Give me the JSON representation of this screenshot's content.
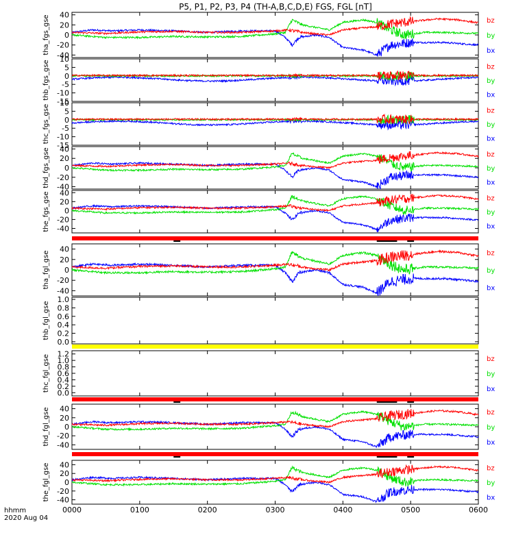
{
  "title": "P5, P1, P2, P3, P4 (TH-A,B,C,D,E) FGS, FGL [nT]",
  "time_axis": {
    "ticks": [
      "0000",
      "0100",
      "0200",
      "0300",
      "0400",
      "0500",
      "0600"
    ],
    "label_line1": "hhmm",
    "label_line2": "2020 Aug 04"
  },
  "colors": {
    "bx": "#0000ff",
    "by": "#00e000",
    "bz": "#ff0000",
    "bar_red": "#ff0000",
    "bar_yellow": "#ffff00",
    "bar_black": "#000000"
  },
  "chart_data": [
    {
      "type": "line",
      "name": "tha_fgs_gse",
      "ylabel": "tha_fgs_gse",
      "ylim": [
        -45,
        45
      ],
      "yticks": [
        40,
        20,
        0,
        -20,
        -40
      ],
      "legend": [
        "bz",
        "by",
        "bx"
      ],
      "has_data": true
    },
    {
      "type": "line",
      "name": "thb_fgs_gse",
      "ylabel": "thb_fgs_gse",
      "ylim": [
        -15,
        10
      ],
      "yticks": [
        10,
        5,
        0,
        -5,
        -10,
        -15
      ],
      "legend": [
        "bz",
        "by",
        "bx"
      ],
      "has_data": true
    },
    {
      "type": "line",
      "name": "thc_fgs_gse",
      "ylabel": "thc_fgs_gse",
      "ylim": [
        -15,
        10
      ],
      "yticks": [
        10,
        5,
        0,
        -5,
        -10,
        -15
      ],
      "legend": [
        "bz",
        "by",
        "bx"
      ],
      "has_data": true
    },
    {
      "type": "line",
      "name": "thd_fgs_gse",
      "ylabel": "thd_fgs_gse",
      "ylim": [
        -45,
        45
      ],
      "yticks": [
        40,
        20,
        0,
        -20,
        -40
      ],
      "legend": [
        "bz",
        "by",
        "bx"
      ],
      "has_data": true
    },
    {
      "type": "line",
      "name": "the_fgs_gse",
      "ylabel": "the_fgs_gse",
      "ylim": [
        -50,
        45
      ],
      "yticks": [
        40,
        20,
        0,
        -20,
        -40
      ],
      "legend": [
        "bz",
        "by",
        "bx"
      ],
      "has_data": true,
      "status_bar": "red"
    },
    {
      "type": "line",
      "name": "tha_fgl_gse",
      "ylabel": "tha_fgl_gse",
      "ylim": [
        -50,
        50
      ],
      "yticks": [
        40,
        20,
        0,
        -20,
        -40
      ],
      "legend": [
        "bz",
        "by",
        "bx"
      ],
      "has_data": true
    },
    {
      "type": "line",
      "name": "thb_fgl_gse",
      "ylabel": "thb_fgl_gse",
      "ylim": [
        -0.05,
        1.05
      ],
      "yticks": [
        "1.0",
        "0.8",
        "0.6",
        "0.4",
        "0.2",
        "0.0"
      ],
      "legend": [],
      "has_data": false,
      "status_bar": "yellow"
    },
    {
      "type": "line",
      "name": "thc_fgl_gse",
      "ylabel": "thc_fgl_gse",
      "ylim": [
        -0.1,
        1.3
      ],
      "yticks": [
        "1.2",
        "1.0",
        "0.8",
        "0.6",
        "0.4",
        "0.2",
        "0.0"
      ],
      "legend": [
        "bz",
        "by",
        "bx"
      ],
      "has_data": false,
      "status_bar": "red"
    },
    {
      "type": "line",
      "name": "thd_fgl_gse",
      "ylabel": "thd_fgl_gse",
      "ylim": [
        -50,
        50
      ],
      "yticks": [
        40,
        20,
        0,
        -20,
        -40
      ],
      "legend": [
        "bz",
        "by",
        "bx"
      ],
      "has_data": true,
      "status_bar": "red"
    },
    {
      "type": "line",
      "name": "the_fgl_gse",
      "ylabel": "the_fgl_gse",
      "ylim": [
        -50,
        50
      ],
      "yticks": [
        40,
        20,
        0,
        -20,
        -40
      ],
      "legend": [
        "bz",
        "by",
        "bx"
      ],
      "has_data": true
    }
  ],
  "series_profile": {
    "description_units": "hours since 0000 UT vs nT (approximate keyframes)",
    "bz": [
      [
        0,
        5
      ],
      [
        0.5,
        3
      ],
      [
        1,
        6
      ],
      [
        1.5,
        7
      ],
      [
        2,
        5
      ],
      [
        2.5,
        5
      ],
      [
        3,
        8
      ],
      [
        3.2,
        10
      ],
      [
        3.4,
        5
      ],
      [
        3.6,
        2
      ],
      [
        3.8,
        0
      ],
      [
        4,
        10
      ],
      [
        4.3,
        14
      ],
      [
        4.5,
        16
      ],
      [
        4.7,
        22
      ],
      [
        4.9,
        25
      ],
      [
        5.1,
        28
      ],
      [
        5.4,
        32
      ],
      [
        5.7,
        30
      ],
      [
        6,
        24
      ]
    ],
    "by": [
      [
        0,
        0
      ],
      [
        0.5,
        -5
      ],
      [
        1,
        -5
      ],
      [
        1.5,
        -3
      ],
      [
        2,
        -4
      ],
      [
        2.5,
        -3
      ],
      [
        3,
        2
      ],
      [
        3.15,
        5
      ],
      [
        3.25,
        30
      ],
      [
        3.4,
        20
      ],
      [
        3.6,
        15
      ],
      [
        3.8,
        10
      ],
      [
        4,
        25
      ],
      [
        4.3,
        30
      ],
      [
        4.5,
        25
      ],
      [
        4.7,
        10
      ],
      [
        4.9,
        0
      ],
      [
        5.2,
        5
      ],
      [
        5.5,
        5
      ],
      [
        6,
        3
      ]
    ],
    "bx": [
      [
        0,
        5
      ],
      [
        0.3,
        10
      ],
      [
        0.6,
        8
      ],
      [
        1,
        10
      ],
      [
        1.5,
        8
      ],
      [
        2,
        5
      ],
      [
        2.5,
        8
      ],
      [
        3,
        8
      ],
      [
        3.15,
        -5
      ],
      [
        3.25,
        -20
      ],
      [
        3.35,
        -5
      ],
      [
        3.6,
        0
      ],
      [
        3.8,
        -5
      ],
      [
        4,
        -25
      ],
      [
        4.3,
        -30
      ],
      [
        4.5,
        -40
      ],
      [
        4.7,
        -20
      ],
      [
        5,
        -15
      ],
      [
        5.5,
        -15
      ],
      [
        6,
        -20
      ]
    ]
  }
}
